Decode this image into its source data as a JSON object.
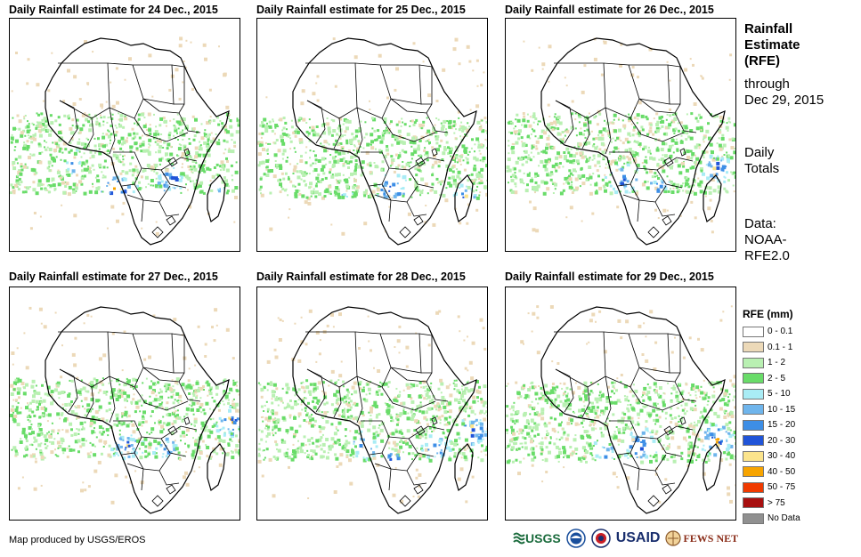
{
  "panels": [
    {
      "title": "Daily Rainfall estimate for 24 Dec., 2015"
    },
    {
      "title": "Daily Rainfall estimate for 25 Dec., 2015"
    },
    {
      "title": "Daily Rainfall estimate for 26 Dec., 2015"
    },
    {
      "title": "Daily Rainfall estimate for 27 Dec., 2015"
    },
    {
      "title": "Daily Rainfall estimate for 28 Dec., 2015"
    },
    {
      "title": "Daily Rainfall estimate for 29 Dec., 2015"
    }
  ],
  "sidebar": {
    "title_line1": "Rainfall",
    "title_line2": "Estimate",
    "title_line3": "(RFE)",
    "through_label": "through",
    "through_date": "Dec 29, 2015",
    "totals_line1": "Daily",
    "totals_line2": "Totals",
    "data_line1": "Data:",
    "data_line2": "NOAA-",
    "data_line3": "RFE2.0"
  },
  "legend": {
    "title": "RFE (mm)",
    "items": [
      {
        "label": "0 - 0.1",
        "color": "#ffffff"
      },
      {
        "label": "0.1 - 1",
        "color": "#ecd9b8"
      },
      {
        "label": "1 - 2",
        "color": "#b9f0b2"
      },
      {
        "label": "2 - 5",
        "color": "#69dc69"
      },
      {
        "label": "5 - 10",
        "color": "#a9ecf5"
      },
      {
        "label": "10 - 15",
        "color": "#6fb5ec"
      },
      {
        "label": "15 - 20",
        "color": "#3d8ee6"
      },
      {
        "label": "20 - 30",
        "color": "#2054d8"
      },
      {
        "label": "30 - 40",
        "color": "#fbe48c"
      },
      {
        "label": "40 - 50",
        "color": "#f7a400"
      },
      {
        "label": "50 - 75",
        "color": "#f03a00"
      },
      {
        "label": "> 75",
        "color": "#a80f0f"
      },
      {
        "label": "No Data",
        "color": "#909090"
      }
    ]
  },
  "credit": "Map produced by USGS/EROS",
  "logos": {
    "usgs": "USGS",
    "usaid": "USAID",
    "fewsnet": "FEWS NET"
  }
}
